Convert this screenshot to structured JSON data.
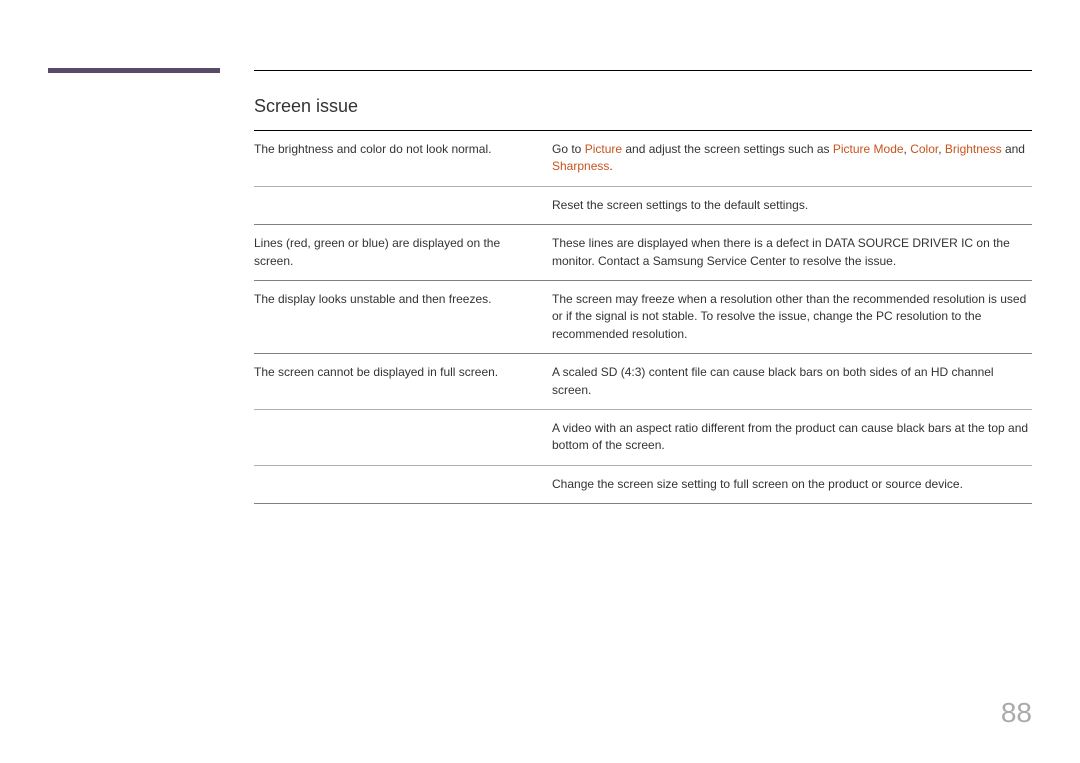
{
  "accent_bar_color": "#5a4a6a",
  "highlight_color": "#c8531e",
  "page_number_color": "#aaaaaa",
  "title": "Screen issue",
  "page_number": "88",
  "rows": {
    "r1": {
      "issue": "The brightness and color do not look normal.",
      "sol_prefix": "Go to ",
      "hl1": "Picture",
      "sol_mid": " and adjust the screen settings such as ",
      "hl2": "Picture Mode",
      "comma1": ", ",
      "hl3": "Color",
      "comma2": ", ",
      "hl4": "Brightness",
      "and": " and ",
      "hl5": "Sharpness",
      "period": "."
    },
    "r1b": {
      "solution": "Reset the screen settings to the default settings."
    },
    "r2": {
      "issue": "Lines (red, green or blue) are displayed on the screen.",
      "solution": "These lines are displayed when there is a defect in DATA SOURCE DRIVER IC on the monitor. Contact a Samsung Service Center to resolve the issue."
    },
    "r3": {
      "issue": "The display looks unstable and then freezes.",
      "solution": "The screen may freeze when a resolution other than the recommended resolution is used or if the signal is not stable. To resolve the issue, change the PC resolution to the recommended resolution."
    },
    "r4": {
      "issue": "The screen cannot be displayed in full screen.",
      "solution": "A scaled SD (4:3) content file can cause black bars on both sides of an HD channel screen."
    },
    "r4b": {
      "solution": "A video with an aspect ratio different from the product can cause black bars at the top and bottom of the screen."
    },
    "r4c": {
      "solution": "Change the screen size setting to full screen on the product or source device."
    }
  }
}
